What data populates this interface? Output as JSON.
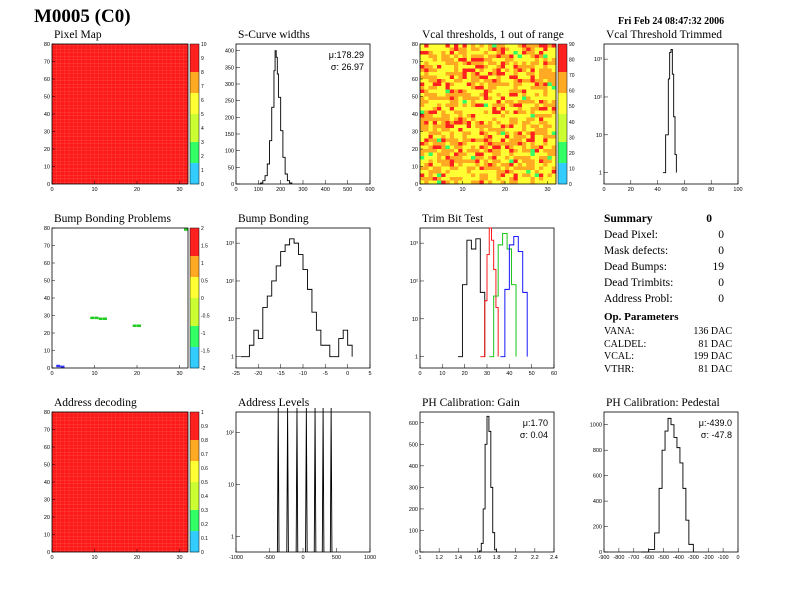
{
  "module": "M0005 (C0)",
  "date": "Fri Feb 24 08:47:32 2006",
  "colors": {
    "red": "#ff1a1a",
    "line": "#000000"
  },
  "panels": [
    {
      "title": "Pixel Map"
    },
    {
      "title": "S-Curve widths"
    },
    {
      "title": "Vcal thresholds, 1 out of range"
    },
    {
      "title": "Vcal Threshold Trimmed"
    },
    {
      "title": "Bump Bonding Problems"
    },
    {
      "title": "Bump Bonding"
    },
    {
      "title": "Trim Bit Test"
    },
    {
      "title": ""
    },
    {
      "title": "Address decoding"
    },
    {
      "title": "Address Levels"
    },
    {
      "title": "PH Calibration: Gain"
    },
    {
      "title": "PH Calibration: Pedestal"
    }
  ],
  "summary": {
    "title": "Summary",
    "total": "0",
    "rows": [
      {
        "label": "Dead Pixel:",
        "value": "0"
      },
      {
        "label": "Mask defects:",
        "value": "0"
      },
      {
        "label": "Dead Bumps:",
        "value": "19"
      },
      {
        "label": "Dead Trimbits:",
        "value": "0"
      },
      {
        "label": "Address Probl:",
        "value": "0"
      }
    ]
  },
  "op_params": {
    "title": "Op. Parameters",
    "rows": [
      {
        "label": "VANA:",
        "value": "136 DAC"
      },
      {
        "label": "CALDEL:",
        "value": "81 DAC"
      },
      {
        "label": "VCAL:",
        "value": "199 DAC"
      },
      {
        "label": "VTHR:",
        "value": "81 DAC"
      }
    ]
  },
  "chart_data": [
    {
      "type": "heatmap",
      "title": "Pixel Map",
      "xlim": [
        0,
        32
      ],
      "ylim": [
        0,
        80
      ],
      "xticks": [
        "0",
        "10",
        "20",
        "30"
      ],
      "yticks": [
        "0",
        "10",
        "20",
        "30",
        "40",
        "50",
        "60",
        "70",
        "80"
      ],
      "zticks": [
        "0",
        "1",
        "2",
        "3",
        "4",
        "5",
        "6",
        "7",
        "8",
        "9",
        "10"
      ],
      "uniform_value": 10
    },
    {
      "type": "line",
      "title": "S-Curve widths",
      "xlim": [
        0,
        600
      ],
      "ylim": [
        0,
        420
      ],
      "xticks": [
        "0",
        "100",
        "200",
        "300",
        "400",
        "500",
        "600"
      ],
      "yticks": [
        "0",
        "50",
        "100",
        "150",
        "200",
        "250",
        "300",
        "350",
        "400"
      ],
      "stats": {
        "mean": "μ:178.29",
        "sigma": "σ: 26.97"
      },
      "x": [
        100,
        110,
        120,
        130,
        140,
        150,
        160,
        170,
        175,
        180,
        185,
        190,
        200,
        210,
        220,
        230,
        240,
        250
      ],
      "y": [
        0,
        3,
        10,
        25,
        60,
        130,
        230,
        340,
        400,
        380,
        330,
        260,
        160,
        80,
        30,
        10,
        3,
        0
      ]
    },
    {
      "type": "heatmap",
      "title": "Vcal thresholds, 1 out of range",
      "xlim": [
        0,
        32
      ],
      "ylim": [
        0,
        80
      ],
      "xticks": [
        "0",
        "10",
        "20",
        "30"
      ],
      "yticks": [
        "0",
        "10",
        "20",
        "30",
        "40",
        "50",
        "60",
        "70",
        "80"
      ],
      "zticks": [
        "0",
        "10",
        "20",
        "30",
        "40",
        "50",
        "60",
        "70",
        "80",
        "90"
      ]
    },
    {
      "type": "line",
      "title": "Vcal Threshold Trimmed",
      "xlim": [
        0,
        100
      ],
      "ylog": true,
      "xticks": [
        "0",
        "20",
        "40",
        "60",
        "80",
        "100"
      ],
      "yticks": [
        "1",
        "10",
        "10²",
        "10³"
      ],
      "x": [
        44,
        46,
        48,
        49,
        50,
        51,
        52,
        53,
        54
      ],
      "y": [
        1,
        10,
        300,
        1500,
        1800,
        400,
        30,
        3,
        1
      ]
    },
    {
      "type": "heatmap",
      "title": "Bump Bonding Problems",
      "xlim": [
        0,
        32
      ],
      "ylim": [
        0,
        80
      ],
      "xticks": [
        "0",
        "10",
        "20",
        "30"
      ],
      "yticks": [
        "0",
        "10",
        "20",
        "30",
        "40",
        "50",
        "60",
        "70",
        "80"
      ],
      "zticks": [
        "-2",
        "-1.5",
        "-1",
        "-0.5",
        "0",
        "0.5",
        "1",
        "1.5",
        "2"
      ],
      "points": [
        [
          9,
          28.5
        ],
        [
          10,
          28.5
        ],
        [
          11,
          28
        ],
        [
          12,
          28
        ],
        [
          19,
          24
        ],
        [
          20,
          24
        ],
        [
          34,
          79
        ],
        [
          1,
          1
        ],
        [
          2,
          0.5
        ]
      ]
    },
    {
      "type": "line",
      "title": "Bump Bonding",
      "xlim": [
        -25,
        5
      ],
      "ylog": true,
      "xticks": [
        "-25",
        "-20",
        "-15",
        "-10",
        "-5",
        "0",
        "5"
      ],
      "yticks": [
        "1",
        "10",
        "10²",
        "10³"
      ],
      "x": [
        -24,
        -22,
        -21,
        -20,
        -19,
        -18,
        -17,
        -16,
        -15,
        -14,
        -13,
        -12,
        -11,
        -10,
        -9,
        -8,
        -7,
        -6,
        -4,
        -2,
        -1,
        0,
        1
      ],
      "y": [
        1,
        2,
        5,
        3,
        20,
        40,
        100,
        250,
        600,
        900,
        1300,
        1000,
        500,
        200,
        60,
        15,
        5,
        2,
        1,
        3,
        5,
        2,
        1
      ]
    },
    {
      "type": "line",
      "title": "Trim Bit Test",
      "xlim": [
        0,
        60
      ],
      "ylog": true,
      "xticks": [
        "0",
        "10",
        "20",
        "30",
        "40",
        "50",
        "60"
      ],
      "yticks": [
        "1",
        "10",
        "10²",
        "10³"
      ],
      "series": [
        {
          "color": "#000000",
          "x": [
            17,
            19,
            21,
            23,
            25,
            27,
            29
          ],
          "y": [
            1,
            80,
            1200,
            700,
            1300,
            50,
            1
          ]
        },
        {
          "color": "#ff0000",
          "x": [
            27,
            29,
            30,
            31,
            32,
            33,
            34,
            35
          ],
          "y": [
            1,
            30,
            500,
            2500,
            1200,
            200,
            20,
            1
          ]
        },
        {
          "color": "#00c000",
          "x": [
            31,
            33,
            35,
            37,
            39,
            41,
            43
          ],
          "y": [
            1,
            40,
            900,
            1800,
            700,
            80,
            1
          ]
        },
        {
          "color": "#0000ff",
          "x": [
            36,
            38,
            40,
            42,
            44,
            46,
            48
          ],
          "y": [
            1,
            60,
            900,
            1500,
            600,
            50,
            1
          ]
        }
      ]
    },
    null,
    {
      "type": "heatmap",
      "title": "Address decoding",
      "xlim": [
        0,
        32
      ],
      "ylim": [
        0,
        80
      ],
      "xticks": [
        "0",
        "10",
        "20",
        "30"
      ],
      "yticks": [
        "0",
        "10",
        "20",
        "30",
        "40",
        "50",
        "60",
        "70",
        "80"
      ],
      "zticks": [
        "0",
        "0.1",
        "0.2",
        "0.3",
        "0.4",
        "0.5",
        "0.6",
        "0.7",
        "0.8",
        "0.9",
        "1"
      ],
      "uniform_value": 1
    },
    {
      "type": "line",
      "title": "Address Levels",
      "xlim": [
        -1000,
        1000
      ],
      "ylog": true,
      "xticks": [
        "-1000",
        "-500",
        "0",
        "500",
        "1000"
      ],
      "yticks": [
        "1",
        "10",
        "10²"
      ],
      "peaks": [
        -370,
        -230,
        -90,
        50,
        180,
        300,
        420
      ],
      "peak_height": 300
    },
    {
      "type": "line",
      "title": "PH Calibration: Gain",
      "xlim": [
        1,
        2.4
      ],
      "ylim": [
        0,
        650
      ],
      "xticks": [
        "1",
        "1.2",
        "1.4",
        "1.6",
        "1.8",
        "2",
        "2.2",
        "2.4"
      ],
      "yticks": [
        "0",
        "100",
        "200",
        "300",
        "400",
        "500",
        "600"
      ],
      "stats": {
        "mean": "μ:1.70",
        "sigma": "σ: 0.04"
      },
      "x": [
        1.6,
        1.62,
        1.64,
        1.66,
        1.68,
        1.7,
        1.72,
        1.74,
        1.76,
        1.78,
        1.8
      ],
      "y": [
        0,
        5,
        40,
        200,
        500,
        630,
        560,
        300,
        90,
        10,
        0
      ]
    },
    {
      "type": "line",
      "title": "PH Calibration: Pedestal",
      "xlim": [
        -900,
        0
      ],
      "ylim": [
        0,
        1100
      ],
      "xticks": [
        "-900",
        "-800",
        "-700",
        "-600",
        "-500",
        "-400",
        "-300",
        "-200",
        "-100",
        "0"
      ],
      "yticks": [
        "0",
        "200",
        "400",
        "600",
        "800",
        "1000"
      ],
      "stats": {
        "mean": "μ:-439.0",
        "sigma": "σ: -47.8"
      },
      "x": [
        -650,
        -600,
        -560,
        -530,
        -510,
        -490,
        -470,
        -450,
        -430,
        -410,
        -390,
        -370,
        -350,
        -330,
        -300
      ],
      "y": [
        0,
        20,
        150,
        500,
        800,
        950,
        1050,
        1000,
        900,
        820,
        700,
        500,
        250,
        60,
        0
      ]
    }
  ]
}
